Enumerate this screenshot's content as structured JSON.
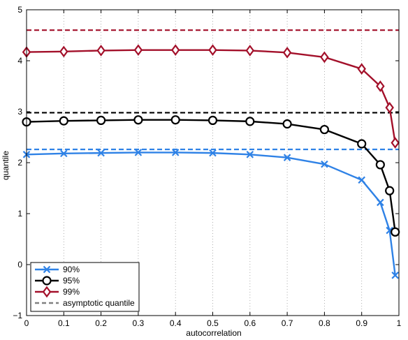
{
  "chart_data": {
    "type": "line",
    "title": "",
    "xlabel": "autocorrelation",
    "ylabel": "quantile",
    "xlim": [
      0,
      1
    ],
    "ylim": [
      -1,
      5
    ],
    "xticks": [
      0,
      0.1,
      0.2,
      0.3,
      0.4,
      0.5,
      0.6,
      0.7,
      0.8,
      0.9,
      1
    ],
    "xtick_labels": [
      "0",
      "0.1",
      "0.2",
      "0.3",
      "0.4",
      "0.5",
      "0.6",
      "0.7",
      "0.8",
      "0.9",
      "1"
    ],
    "yticks": [
      -1,
      0,
      1,
      2,
      3,
      4,
      5
    ],
    "ytick_labels": [
      "−1",
      "0",
      "1",
      "2",
      "3",
      "4",
      "5"
    ],
    "grid": "vertical dotted",
    "legend_position": "bottom-left",
    "x": [
      0,
      0.1,
      0.2,
      0.3,
      0.4,
      0.5,
      0.6,
      0.7,
      0.8,
      0.9,
      0.95,
      0.975,
      0.99
    ],
    "series": [
      {
        "name": "90%",
        "marker": "x",
        "color": "#2f82e6",
        "values": [
          2.16,
          2.18,
          2.19,
          2.2,
          2.2,
          2.19,
          2.16,
          2.1,
          1.97,
          1.66,
          1.22,
          0.67,
          -0.21
        ]
      },
      {
        "name": "95%",
        "marker": "circle",
        "color": "#000000",
        "values": [
          2.8,
          2.82,
          2.83,
          2.84,
          2.84,
          2.83,
          2.81,
          2.76,
          2.65,
          2.37,
          1.96,
          1.45,
          0.64
        ]
      },
      {
        "name": "99%",
        "marker": "diamond",
        "color": "#a3102a",
        "values": [
          4.17,
          4.18,
          4.2,
          4.21,
          4.21,
          4.21,
          4.2,
          4.16,
          4.07,
          3.84,
          3.5,
          3.08,
          2.39
        ]
      }
    ],
    "reference_lines": [
      {
        "series": "90%",
        "value": 2.26,
        "color": "#2f82e6",
        "style": "dashed"
      },
      {
        "series": "95%",
        "value": 2.98,
        "color": "#000000",
        "style": "dashed"
      },
      {
        "series": "99%",
        "value": 4.6,
        "color": "#a3102a",
        "style": "dashed"
      }
    ],
    "legend": [
      {
        "label": "90%",
        "color": "#2f82e6",
        "marker": "x",
        "style": "solid"
      },
      {
        "label": "95%",
        "color": "#000000",
        "marker": "circle",
        "style": "solid"
      },
      {
        "label": "99%",
        "color": "#a3102a",
        "marker": "diamond",
        "style": "solid"
      },
      {
        "label": "asymptotic quantile",
        "color": "#808080",
        "marker": "none",
        "style": "dashed"
      }
    ]
  }
}
